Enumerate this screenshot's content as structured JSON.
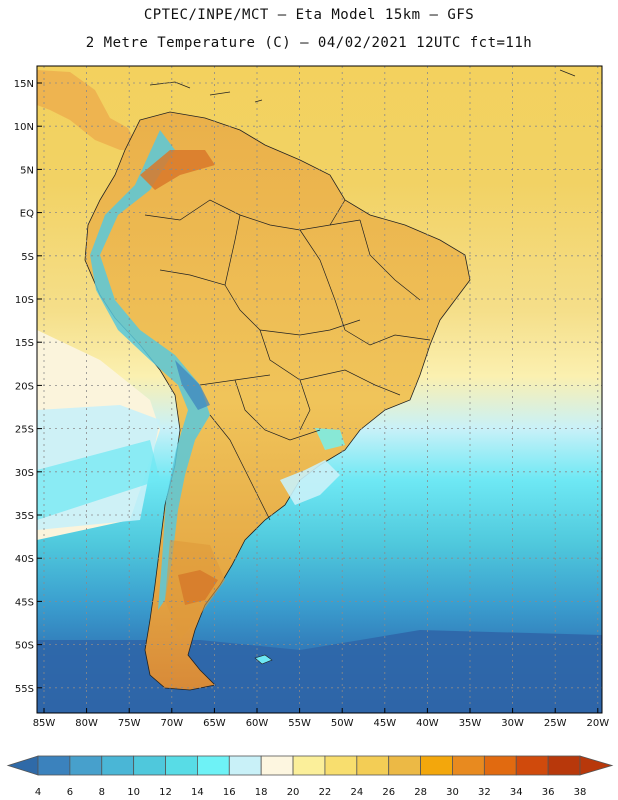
{
  "title_line1": "CPTEC/INPE/MCT – Eta Model 15km – GFS",
  "title_line2": "2 Metre Temperature (C) – 04/02/2021 12UTC fct=11h",
  "lat_ticks": [
    "15N",
    "10N",
    "5N",
    "EQ",
    "5S",
    "10S",
    "15S",
    "20S",
    "25S",
    "30S",
    "35S",
    "40S",
    "45S",
    "50S",
    "55S"
  ],
  "lon_ticks": [
    "85W",
    "80W",
    "75W",
    "70W",
    "65W",
    "60W",
    "55W",
    "50W",
    "45W",
    "40W",
    "35W",
    "30W",
    "25W",
    "20W"
  ],
  "colorbar": {
    "labels": [
      "4",
      "6",
      "8",
      "10",
      "12",
      "14",
      "16",
      "18",
      "20",
      "22",
      "24",
      "26",
      "28",
      "30",
      "32",
      "34",
      "36",
      "38"
    ],
    "colors": [
      "#2f6aa8",
      "#3b82bd",
      "#47a0cc",
      "#4ab6d6",
      "#4fc8dc",
      "#58dce6",
      "#6ef2f6",
      "#c9f1f8",
      "#fdf6e0",
      "#fbef9a",
      "#f8de6e",
      "#f3cd55",
      "#ecb945",
      "#f3a70c",
      "#e88a1f",
      "#e16a10",
      "#d04a0c",
      "#b8380b"
    ]
  }
}
